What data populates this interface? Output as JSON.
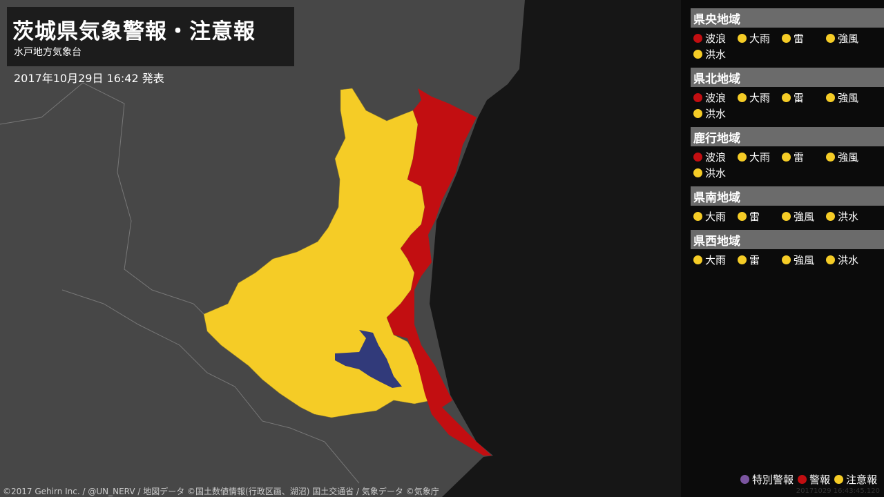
{
  "header": {
    "title": "茨城県気象警報・注意報",
    "office": "水戸地方気象台",
    "issued": "2017年10月29日 16:42 発表"
  },
  "colors": {
    "special": "#7b55a0",
    "warning": "#c20e11",
    "advisory": "#f5cc26",
    "land": "#474747",
    "sea": "#161616",
    "lake": "#313a7a"
  },
  "regions": [
    {
      "name": "県央地域",
      "items": [
        {
          "label": "波浪",
          "level": "warning"
        },
        {
          "label": "大雨",
          "level": "advisory"
        },
        {
          "label": "雷",
          "level": "advisory"
        },
        {
          "label": "強風",
          "level": "advisory"
        },
        {
          "label": "洪水",
          "level": "advisory"
        }
      ]
    },
    {
      "name": "県北地域",
      "items": [
        {
          "label": "波浪",
          "level": "warning"
        },
        {
          "label": "大雨",
          "level": "advisory"
        },
        {
          "label": "雷",
          "level": "advisory"
        },
        {
          "label": "強風",
          "level": "advisory"
        },
        {
          "label": "洪水",
          "level": "advisory"
        }
      ]
    },
    {
      "name": "鹿行地域",
      "items": [
        {
          "label": "波浪",
          "level": "warning"
        },
        {
          "label": "大雨",
          "level": "advisory"
        },
        {
          "label": "雷",
          "level": "advisory"
        },
        {
          "label": "強風",
          "level": "advisory"
        },
        {
          "label": "洪水",
          "level": "advisory"
        }
      ]
    },
    {
      "name": "県南地域",
      "items": [
        {
          "label": "大雨",
          "level": "advisory"
        },
        {
          "label": "雷",
          "level": "advisory"
        },
        {
          "label": "強風",
          "level": "advisory"
        },
        {
          "label": "洪水",
          "level": "advisory"
        }
      ]
    },
    {
      "name": "県西地域",
      "items": [
        {
          "label": "大雨",
          "level": "advisory"
        },
        {
          "label": "雷",
          "level": "advisory"
        },
        {
          "label": "強風",
          "level": "advisory"
        },
        {
          "label": "洪水",
          "level": "advisory"
        }
      ]
    }
  ],
  "legend": {
    "special": "特別警報",
    "warning": "警報",
    "advisory": "注意報"
  },
  "timestamp": "20171029 16:43:45.120",
  "credit": "©2017 Gehirn Inc. / @UN_NERV / 地図データ ©国土数値情報(行政区画、湖沼) 国土交通省 / 気象データ ©気象庁"
}
